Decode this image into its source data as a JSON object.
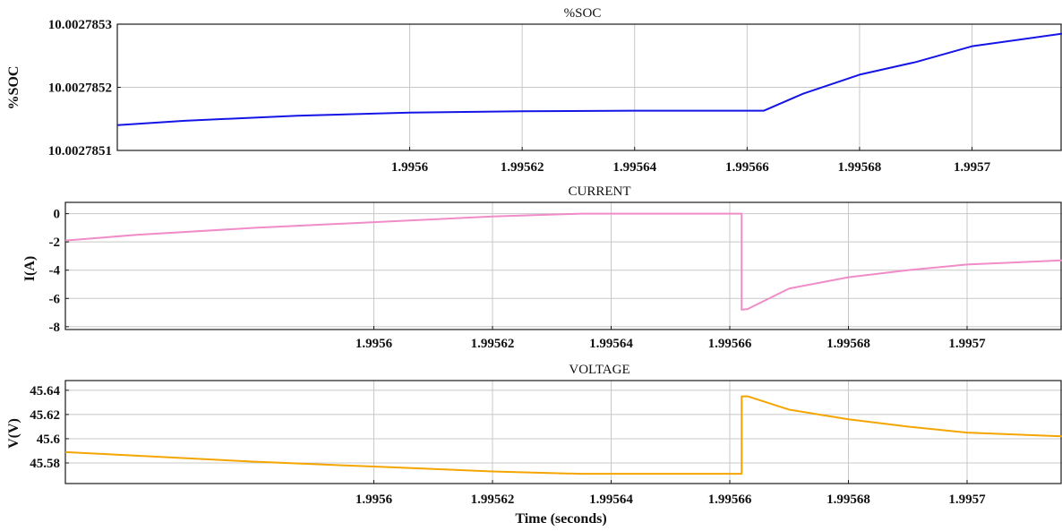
{
  "chart_data": [
    {
      "type": "line",
      "title": "%SOC",
      "xlabel": "",
      "ylabel": "%SOC",
      "xlim": [
        1.995548,
        1.995716
      ],
      "ylim": [
        10.0027851,
        10.0027853
      ],
      "xticks": [
        1.9956,
        1.99562,
        1.99564,
        1.99566,
        1.99568,
        1.9957
      ],
      "xtick_labels": [
        "1.9956",
        "1.99562",
        "1.99564",
        "1.99566",
        "1.99568",
        "1.9957"
      ],
      "yticks": [
        10.0027851,
        10.0027852,
        10.0027853
      ],
      "ytick_labels": [
        "10.0027851",
        "10.0027852",
        "10.0027853"
      ],
      "grid": true,
      "series": [
        {
          "color": "#1414e6",
          "x": [
            1.995548,
            1.99556,
            1.99558,
            1.9956,
            1.99562,
            1.99564,
            1.99566,
            1.995663,
            1.99567,
            1.99568,
            1.99569,
            1.9957,
            1.995716
          ],
          "y": [
            10.00278514,
            10.002785147,
            10.002785155,
            10.00278516,
            10.002785162,
            10.002785163,
            10.002785163,
            10.002785163,
            10.00278519,
            10.00278522,
            10.00278524,
            10.002785265,
            10.002785285
          ]
        }
      ]
    },
    {
      "type": "line",
      "title": "CURRENT",
      "xlabel": "",
      "ylabel": "I(A)",
      "xlim": [
        1.995548,
        1.995716
      ],
      "ylim": [
        -8.2,
        0.8
      ],
      "xticks": [
        1.9956,
        1.99562,
        1.99564,
        1.99566,
        1.99568,
        1.9957
      ],
      "xtick_labels": [
        "1.9956",
        "1.99562",
        "1.99564",
        "1.99566",
        "1.99568",
        "1.9957"
      ],
      "yticks": [
        -8,
        -6,
        -4,
        -2,
        0
      ],
      "ytick_labels": [
        "-8",
        "-6",
        "-4",
        "-2",
        "0"
      ],
      "grid": true,
      "series": [
        {
          "color": "#f08cc8",
          "x": [
            1.995548,
            1.99556,
            1.99558,
            1.9956,
            1.99562,
            1.995635,
            1.99565,
            1.995662,
            1.995662,
            1.995663,
            1.99567,
            1.99568,
            1.99569,
            1.9957,
            1.995716
          ],
          "y": [
            -1.9,
            -1.5,
            -1.0,
            -0.6,
            -0.2,
            0,
            0,
            0,
            -6.8,
            -6.75,
            -5.3,
            -4.5,
            -4.0,
            -3.6,
            -3.3
          ]
        }
      ]
    },
    {
      "type": "line",
      "title": "VOLTAGE",
      "xlabel": "Time (seconds)",
      "ylabel": "V(V)",
      "xlim": [
        1.995548,
        1.995716
      ],
      "ylim": [
        45.563,
        45.648
      ],
      "xticks": [
        1.9956,
        1.99562,
        1.99564,
        1.99566,
        1.99568,
        1.9957
      ],
      "xtick_labels": [
        "1.9956",
        "1.99562",
        "1.99564",
        "1.99566",
        "1.99568",
        "1.9957"
      ],
      "yticks": [
        45.58,
        45.6,
        45.62,
        45.64
      ],
      "ytick_labels": [
        "45.58",
        "45.6",
        "45.62",
        "45.64"
      ],
      "grid": true,
      "series": [
        {
          "color": "#f5a500",
          "x": [
            1.995548,
            1.99556,
            1.99558,
            1.9956,
            1.99562,
            1.995635,
            1.99565,
            1.995662,
            1.995662,
            1.995663,
            1.99567,
            1.99568,
            1.99569,
            1.9957,
            1.995716
          ],
          "y": [
            45.589,
            45.586,
            45.581,
            45.577,
            45.573,
            45.571,
            45.571,
            45.571,
            45.635,
            45.635,
            45.624,
            45.616,
            45.61,
            45.605,
            45.602
          ]
        }
      ]
    }
  ]
}
